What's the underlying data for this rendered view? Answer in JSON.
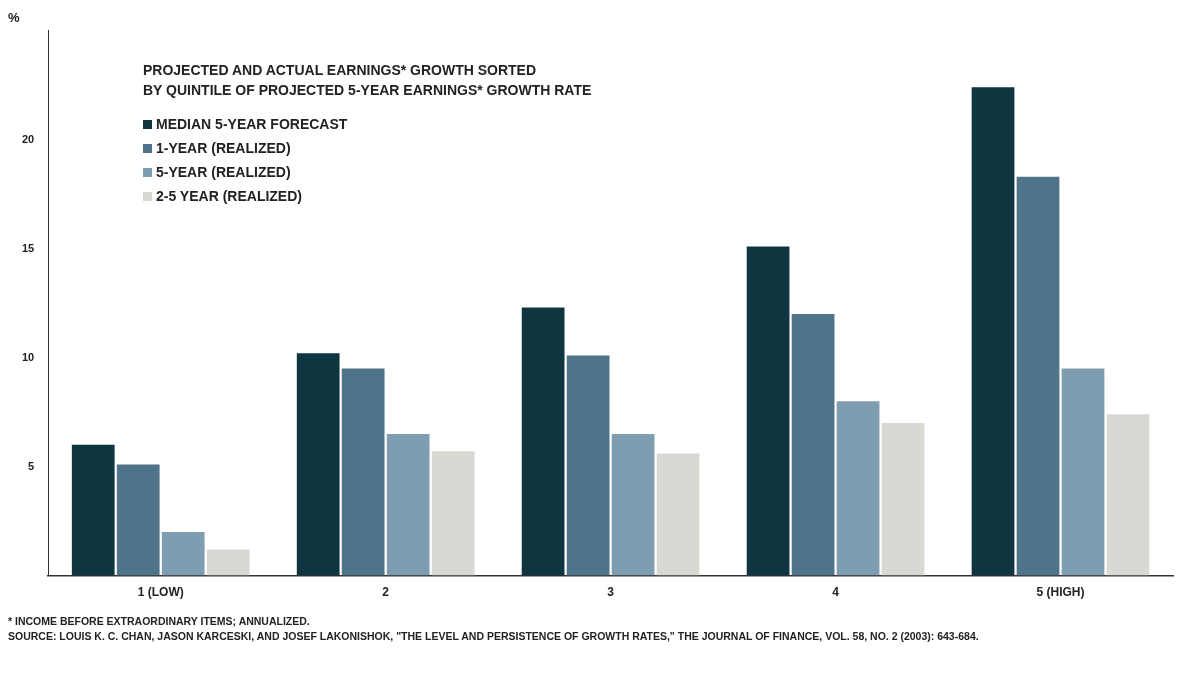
{
  "chart_data": {
    "type": "bar",
    "title": "PROJECTED AND ACTUAL EARNINGS* GROWTH SORTED\nBY QUINTILE OF PROJECTED 5-YEAR EARNINGS* GROWTH RATE",
    "ylabel": "%",
    "categories": [
      "1 (LOW)",
      "2",
      "3",
      "4",
      "5 (HIGH)"
    ],
    "series": [
      {
        "name": "MEDIAN 5-YEAR FORECAST",
        "color": "#0e3540",
        "values": [
          6.0,
          10.2,
          12.3,
          15.1,
          22.4
        ]
      },
      {
        "name": "1-YEAR (REALIZED)",
        "color": "#4f7389",
        "values": [
          5.1,
          9.5,
          10.1,
          12.0,
          18.3
        ]
      },
      {
        "name": "5-YEAR (REALIZED)",
        "color": "#7f9db0",
        "values": [
          2.0,
          6.5,
          6.5,
          8.0,
          9.5
        ]
      },
      {
        "name": "2-5 YEAR (REALIZED)",
        "color": "#d9d9d3",
        "values": [
          1.2,
          5.7,
          5.6,
          7.0,
          7.4
        ]
      }
    ],
    "ylim": [
      0,
      25
    ],
    "yticks": [
      5,
      10,
      15,
      20
    ],
    "grid": false,
    "legend": "top left",
    "annotations": [
      "* INCOME BEFORE EXTRAORDINARY ITEMS; ANNUALIZED.",
      "SOURCE: LOUIS K. C. CHAN, JASON KARCESKI, AND JOSEF LAKONISHOK, \"THE LEVEL AND PERSISTENCE OF GROWTH RATES,\" THE JOURNAL OF FINANCE, VOL. 58, NO. 2 (2003): 643-684."
    ]
  }
}
